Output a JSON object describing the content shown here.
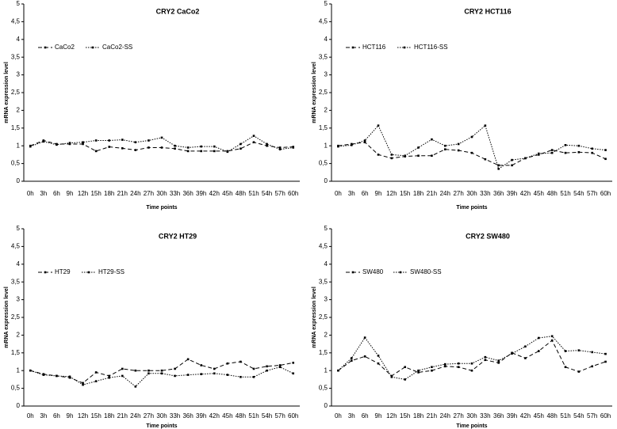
{
  "chart_data": [
    {
      "type": "line",
      "title": "CRY2 CaCo2",
      "xlabel": "Time points",
      "ylabel": "mRNA expression level",
      "categories": [
        "0h",
        "3h",
        "6h",
        "9h",
        "12h",
        "15h",
        "18h",
        "21h",
        "24h",
        "27h",
        "30h",
        "33h",
        "36h",
        "39h",
        "42h",
        "45h",
        "48h",
        "51h",
        "54h",
        "57h",
        "60h"
      ],
      "series": [
        {
          "name": "CaCo2",
          "color": "#000000",
          "line_style": "dashed",
          "values": [
            1.0,
            1.15,
            1.05,
            1.05,
            1.05,
            0.85,
            0.97,
            0.93,
            0.88,
            0.95,
            0.95,
            0.92,
            0.85,
            0.85,
            0.85,
            0.85,
            0.92,
            1.1,
            1.0,
            0.95,
            0.97
          ]
        },
        {
          "name": "CaCo2-SS",
          "color": "#000000",
          "line_style": "dotted",
          "values": [
            0.98,
            1.12,
            1.03,
            1.08,
            1.1,
            1.15,
            1.15,
            1.17,
            1.1,
            1.15,
            1.23,
            1.0,
            0.95,
            0.98,
            0.98,
            0.83,
            1.05,
            1.28,
            1.05,
            0.9,
            0.95
          ]
        }
      ],
      "ylim": [
        0,
        5
      ],
      "yticks": [
        0,
        {
          "value": 0.5,
          "label": "0,5"
        },
        1,
        {
          "value": 1.5,
          "label": "1,5"
        },
        2,
        {
          "value": 2.5,
          "label": "2,5"
        },
        3,
        {
          "value": 3.5,
          "label": "3,5"
        },
        4,
        {
          "value": 4.5,
          "label": "4,5"
        },
        5
      ],
      "legend": "upper left"
    },
    {
      "type": "line",
      "title": "CRY2 HCT116",
      "xlabel": "Time points",
      "ylabel": "mRNA expression level",
      "categories": [
        "0h",
        "3h",
        "6h",
        "9h",
        "12h",
        "15h",
        "18h",
        "21h",
        "24h",
        "27h",
        "30h",
        "33h",
        "36h",
        "39h",
        "42h",
        "45h",
        "48h",
        "51h",
        "54h",
        "57h",
        "60h"
      ],
      "series": [
        {
          "name": "HCT116",
          "color": "#000000",
          "line_style": "dashed",
          "values": [
            1.0,
            1.05,
            1.1,
            0.75,
            0.65,
            0.7,
            0.72,
            0.72,
            0.9,
            0.87,
            0.8,
            0.62,
            0.45,
            0.45,
            0.65,
            0.75,
            0.88,
            0.8,
            0.82,
            0.8,
            0.63
          ]
        },
        {
          "name": "HCT116-SS",
          "color": "#000000",
          "line_style": "dotted",
          "values": [
            0.98,
            1.02,
            1.15,
            1.57,
            0.75,
            0.72,
            0.95,
            1.18,
            1.0,
            1.05,
            1.25,
            1.57,
            0.35,
            0.6,
            0.65,
            0.78,
            0.8,
            1.02,
            1.0,
            0.92,
            0.88
          ]
        }
      ],
      "ylim": [
        0,
        5
      ],
      "yticks": [
        0,
        {
          "value": 0.5,
          "label": "0,5"
        },
        1,
        {
          "value": 1.5,
          "label": "1,5"
        },
        2,
        {
          "value": 2.5,
          "label": "2,5"
        },
        3,
        {
          "value": 3.5,
          "label": "3,5"
        },
        4,
        {
          "value": 4.5,
          "label": "4,5"
        },
        5
      ],
      "legend": "upper left"
    },
    {
      "type": "line",
      "title": "CRY2 HT29",
      "xlabel": "Time points",
      "ylabel": "mRNA expression level",
      "categories": [
        "0h",
        "3h",
        "6h",
        "9h",
        "12h",
        "15h",
        "18h",
        "21h",
        "24h",
        "27h",
        "30h",
        "33h",
        "36h",
        "39h",
        "42h",
        "45h",
        "48h",
        "51h",
        "54h",
        "57h",
        "60h"
      ],
      "series": [
        {
          "name": "HT29",
          "color": "#000000",
          "line_style": "dashed",
          "values": [
            1.0,
            0.9,
            0.85,
            0.8,
            0.65,
            0.95,
            0.85,
            1.05,
            1.0,
            1.0,
            1.0,
            1.05,
            1.32,
            1.15,
            1.05,
            1.2,
            1.25,
            1.05,
            1.12,
            1.15,
            1.22
          ]
        },
        {
          "name": "HT29-SS",
          "color": "#000000",
          "line_style": "dotted",
          "values": [
            1.0,
            0.88,
            0.85,
            0.83,
            0.6,
            0.7,
            0.8,
            0.85,
            0.55,
            0.92,
            0.92,
            0.85,
            0.88,
            0.9,
            0.92,
            0.88,
            0.82,
            0.82,
            1.0,
            1.1,
            0.92
          ]
        }
      ],
      "ylim": [
        0,
        5
      ],
      "yticks": [
        0,
        {
          "value": 0.5,
          "label": "0,5"
        },
        1,
        {
          "value": 1.5,
          "label": "1,5"
        },
        2,
        {
          "value": 2.5,
          "label": "2,5"
        },
        3,
        {
          "value": 3.5,
          "label": "3,5"
        },
        4,
        {
          "value": 4.5,
          "label": "4,5"
        },
        5
      ],
      "legend": "upper left"
    },
    {
      "type": "line",
      "title": "CRY2 SW480",
      "xlabel": "Time points",
      "ylabel": "mRNA expression level",
      "categories": [
        "0h",
        "3h",
        "6h",
        "9h",
        "12h",
        "15h",
        "18h",
        "21h",
        "24h",
        "27h",
        "30h",
        "33h",
        "36h",
        "39h",
        "42h",
        "45h",
        "48h",
        "51h",
        "54h",
        "57h",
        "60h"
      ],
      "series": [
        {
          "name": "SW480",
          "color": "#000000",
          "line_style": "dashed",
          "values": [
            1.0,
            1.28,
            1.4,
            1.2,
            0.85,
            1.1,
            0.95,
            1.0,
            1.12,
            1.1,
            1.0,
            1.3,
            1.22,
            1.5,
            1.35,
            1.55,
            1.85,
            1.1,
            0.97,
            1.12,
            1.25
          ]
        },
        {
          "name": "SW480-SS",
          "color": "#000000",
          "line_style": "dotted",
          "values": [
            1.0,
            1.35,
            1.93,
            1.42,
            0.82,
            0.75,
            1.0,
            1.1,
            1.18,
            1.2,
            1.2,
            1.38,
            1.28,
            1.48,
            1.68,
            1.92,
            1.97,
            1.55,
            1.57,
            1.52,
            1.47
          ]
        }
      ],
      "ylim": [
        0,
        5
      ],
      "yticks": [
        0,
        {
          "value": 0.5,
          "label": "0,5"
        },
        1,
        {
          "value": 1.5,
          "label": "1,5"
        },
        2,
        {
          "value": 2.5,
          "label": "2,5"
        },
        3,
        {
          "value": 3.5,
          "label": "3,5"
        },
        4,
        {
          "value": 4.5,
          "label": "4,5"
        },
        5
      ],
      "legend": "upper left"
    }
  ]
}
